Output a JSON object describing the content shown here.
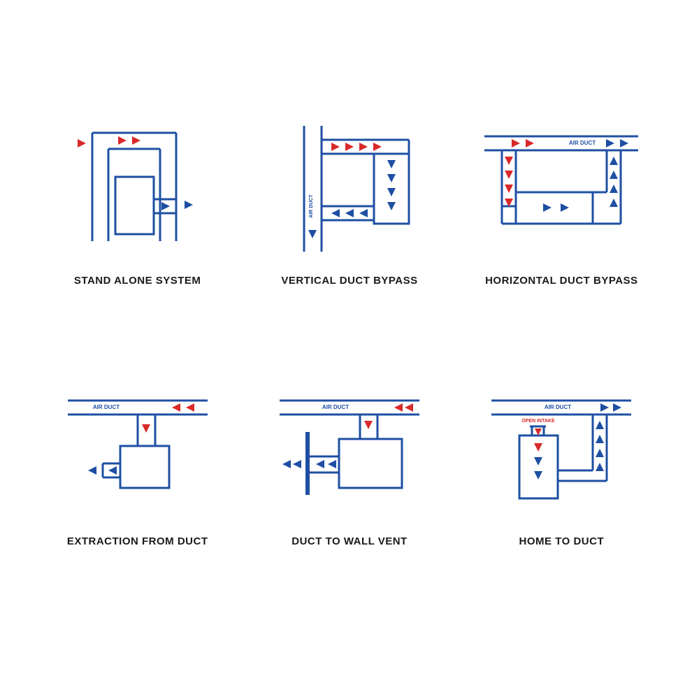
{
  "colors": {
    "blue": "#1e4fa3",
    "red": "#d92a2a",
    "stroke_w": 3,
    "arrow_size": 9,
    "label_color": "#1a1a1a",
    "tiny_text_blue": "#1e4fa3",
    "tiny_text_red": "#d92a2a"
  },
  "tiny_labels": {
    "air_duct": "AIR DUCT",
    "open_intake": "OPEN INTAKE"
  },
  "cells": [
    {
      "id": "stand-alone",
      "label": "STAND ALONE SYSTEM"
    },
    {
      "id": "vertical-bypass",
      "label": "VERTICAL DUCT BYPASS"
    },
    {
      "id": "horizontal-bypass",
      "label": "HORIZONTAL DUCT BYPASS"
    },
    {
      "id": "extraction",
      "label": "EXTRACTION FROM DUCT"
    },
    {
      "id": "duct-to-wall",
      "label": "DUCT TO WALL VENT"
    },
    {
      "id": "home-to-duct",
      "label": "HOME TO DUCT"
    }
  ]
}
